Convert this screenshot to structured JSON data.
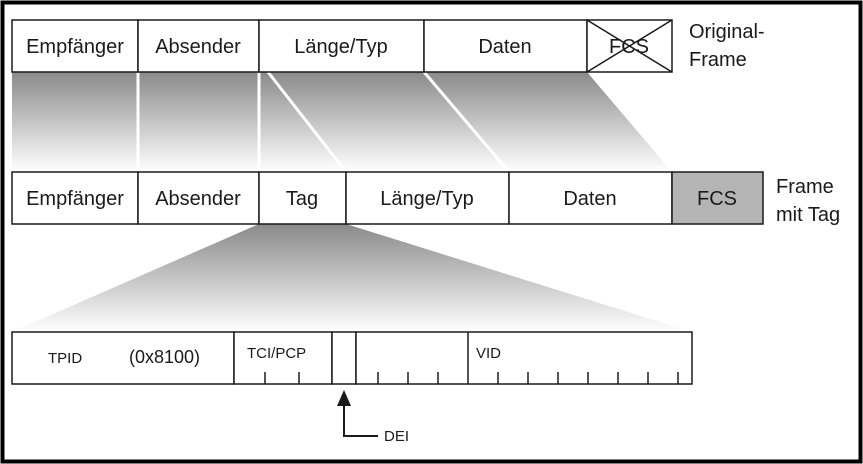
{
  "original_frame": {
    "fields": [
      "Empfänger",
      "Absender",
      "Länge/Typ",
      "Daten",
      "FCS"
    ],
    "label_line1": "Original-",
    "label_line2": "Frame"
  },
  "tagged_frame": {
    "fields": [
      "Empfänger",
      "Absender",
      "Tag",
      "Länge/Typ",
      "Daten",
      "FCS"
    ],
    "label_line1": "Frame",
    "label_line2": "mit Tag",
    "fcs_fill": "#b4b4b4"
  },
  "tag_detail": {
    "tpid_label": "TPID",
    "tpid_value": "(0x8100)",
    "tci_label": "TCI/PCP",
    "vid_label": "VID",
    "dei_label": "DEI"
  },
  "colors": {
    "border": "#000000",
    "stroke": "#1a1a1a",
    "gradient_dark": "#8a8a8a",
    "gradient_light": "#ffffff"
  }
}
